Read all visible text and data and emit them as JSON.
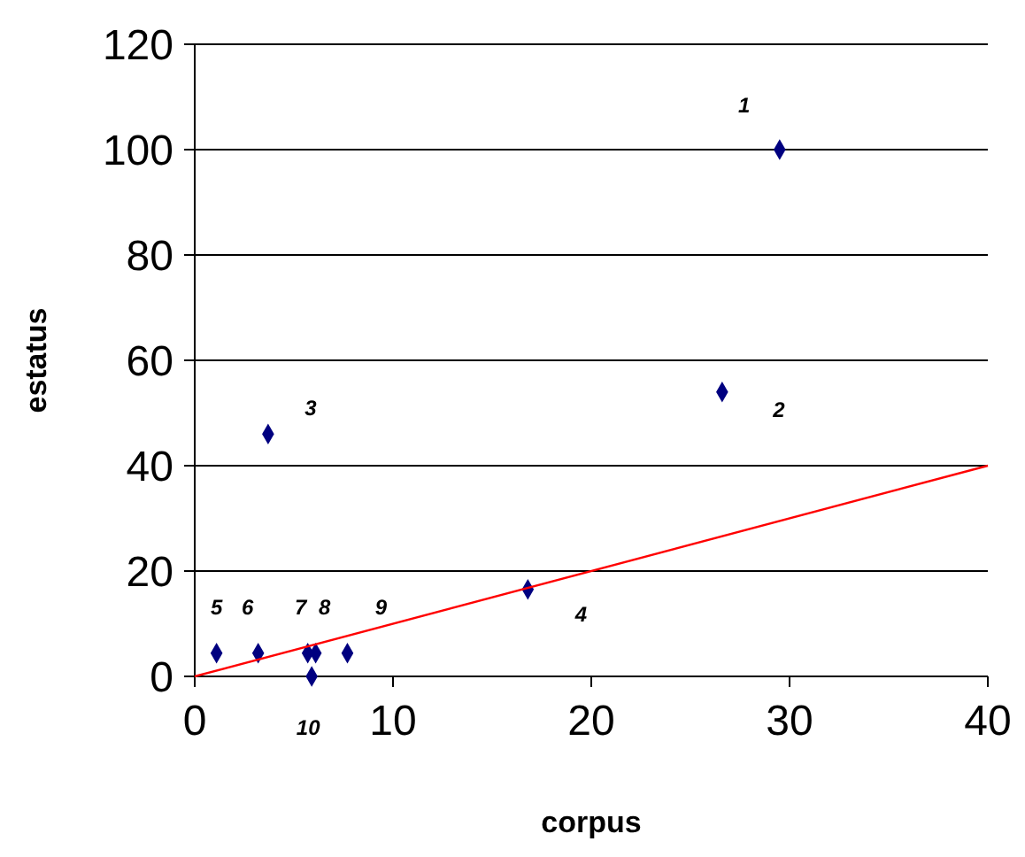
{
  "chart_data": {
    "type": "scatter",
    "xlabel": "corpus",
    "ylabel": "estatus",
    "xlim": [
      0,
      40
    ],
    "ylim": [
      0,
      120
    ],
    "xticks": [
      0,
      10,
      20,
      30,
      40
    ],
    "yticks": [
      0,
      20,
      40,
      60,
      80,
      100,
      120
    ],
    "grid": "y",
    "marker": "diamond",
    "series": [
      {
        "color": "#000080",
        "x": [
          29.5,
          26.6,
          3.7,
          16.8,
          1.1,
          3.2,
          5.7,
          6.1,
          7.7,
          5.9
        ],
        "values": [
          100,
          54,
          46,
          16.5,
          4.4,
          4.4,
          4.4,
          4.4,
          4.4,
          0
        ]
      },
      {
        "type": "line",
        "color": "#ff0000",
        "marker": "none",
        "line_style": "solid",
        "x": [
          0,
          40
        ],
        "values": [
          0,
          40
        ]
      }
    ],
    "annotations": [
      {
        "text": "1",
        "x": 29.5,
        "y": 100
      },
      {
        "text": "2",
        "x": 26.6,
        "y": 54
      },
      {
        "text": "3",
        "x": 3.7,
        "y": 46
      },
      {
        "text": "4",
        "x": 16.8,
        "y": 16.5
      },
      {
        "text": "5",
        "x": 1.1,
        "y": 4.4
      },
      {
        "text": "6",
        "x": 3.2,
        "y": 4.4
      },
      {
        "text": "7",
        "x": 5.7,
        "y": 4.4
      },
      {
        "text": "8",
        "x": 6.1,
        "y": 4.4
      },
      {
        "text": "9",
        "x": 7.7,
        "y": 4.4
      },
      {
        "text": "10",
        "x": 5.9,
        "y": 0
      }
    ]
  }
}
